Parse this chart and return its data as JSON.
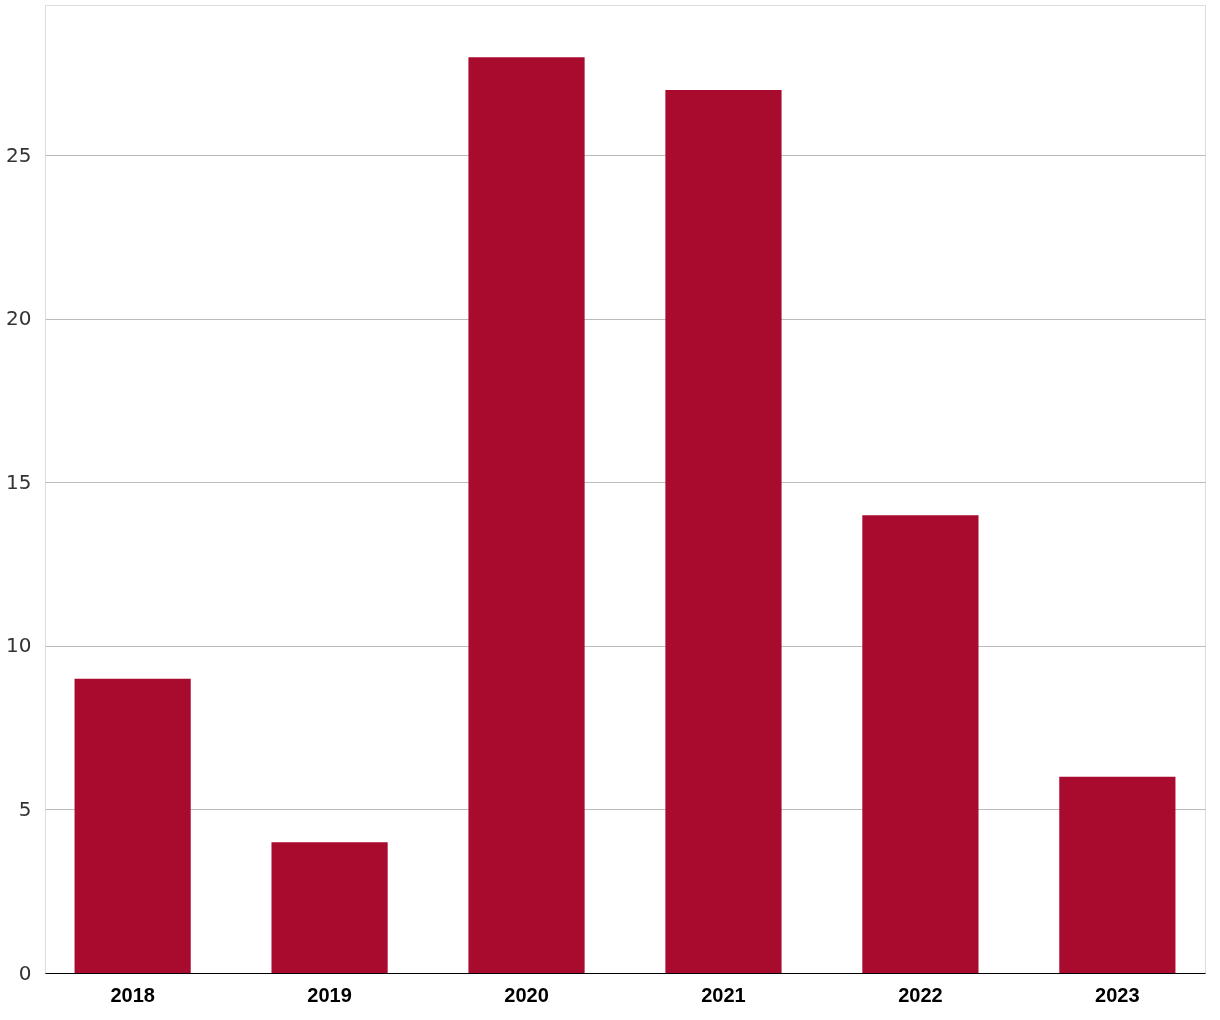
{
  "chart_data": {
    "type": "bar",
    "categories": [
      "2018",
      "2019",
      "2020",
      "2021",
      "2022",
      "2023"
    ],
    "values": [
      9,
      4,
      28,
      27,
      14,
      6
    ],
    "color": "#a80b2e",
    "ylim": [
      0,
      29.6
    ],
    "yticks": [
      0,
      5,
      10,
      15,
      20,
      25
    ],
    "grid": "y"
  }
}
